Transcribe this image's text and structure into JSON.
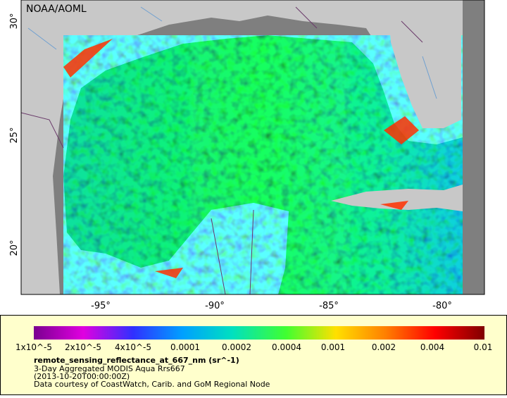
{
  "map": {
    "label": "NOAA/AOML",
    "lat_labels": [
      "30°",
      "25°",
      "20°"
    ],
    "lon_labels": [
      "-95°",
      "-90°",
      "-85°",
      "-80°"
    ]
  },
  "legend": {
    "scale_labels": [
      "1x10^-5",
      "2x10^-5",
      "4x10^-5",
      "0.0001",
      "0.0002",
      "0.0004",
      "0.001",
      "0.002",
      "0.004",
      "0.01"
    ],
    "variable": "remote_sensing_reflectance_at_667_nm (sr^-1)",
    "description": "3-Day Aggregated MODIS Aqua Rrs667",
    "time": "(2013-10-20T00:00:00Z)",
    "credit": "Data courtesy of CoastWatch, Carib. and GoM Regional Node"
  }
}
